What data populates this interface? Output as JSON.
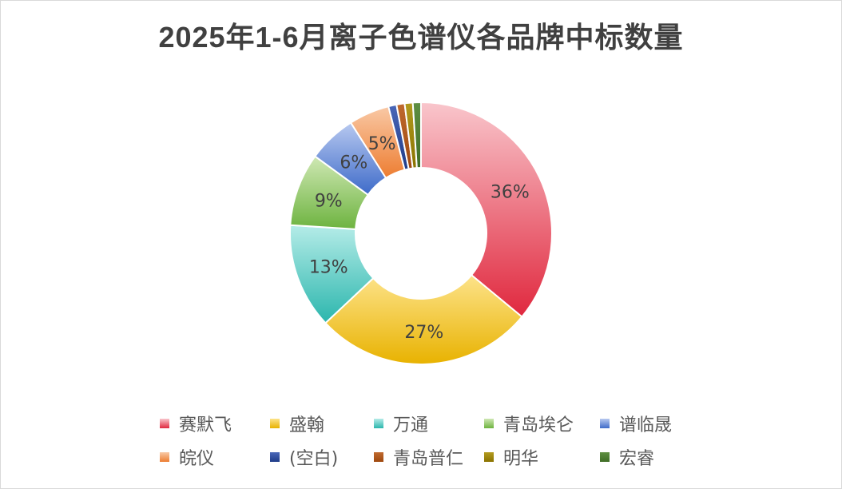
{
  "chart_data": {
    "type": "pie",
    "subtype": "doughnut",
    "title": "2025年1-6月离子色谱仪各品牌中标数量",
    "categories": [
      "赛默飞",
      "盛翰",
      "万通",
      "青岛埃仑",
      "谱临晟",
      "皖仪",
      "(空白)",
      "青岛普仁",
      "明华",
      "宏睿"
    ],
    "values": [
      36,
      27,
      13,
      9,
      6,
      5,
      1,
      1,
      1,
      1
    ],
    "labels": [
      "36%",
      "27%",
      "13%",
      "9%",
      "6%",
      "5%",
      "",
      "",
      "",
      ""
    ],
    "colors": [
      "#e0283e",
      "#e8b200",
      "#2bb6ad",
      "#6db33f",
      "#3e6bc9",
      "#ed7d31",
      "#1f3c88",
      "#9e480e",
      "#8a7300",
      "#3f6d26"
    ],
    "colors_light": [
      "#f9c6cc",
      "#fde38a",
      "#b5ece8",
      "#cfe8b4",
      "#b8c9f0",
      "#f9c9a6",
      "#4a67b8",
      "#c06a2f",
      "#b39b1f",
      "#5f8f42"
    ],
    "legend_position": "bottom"
  }
}
